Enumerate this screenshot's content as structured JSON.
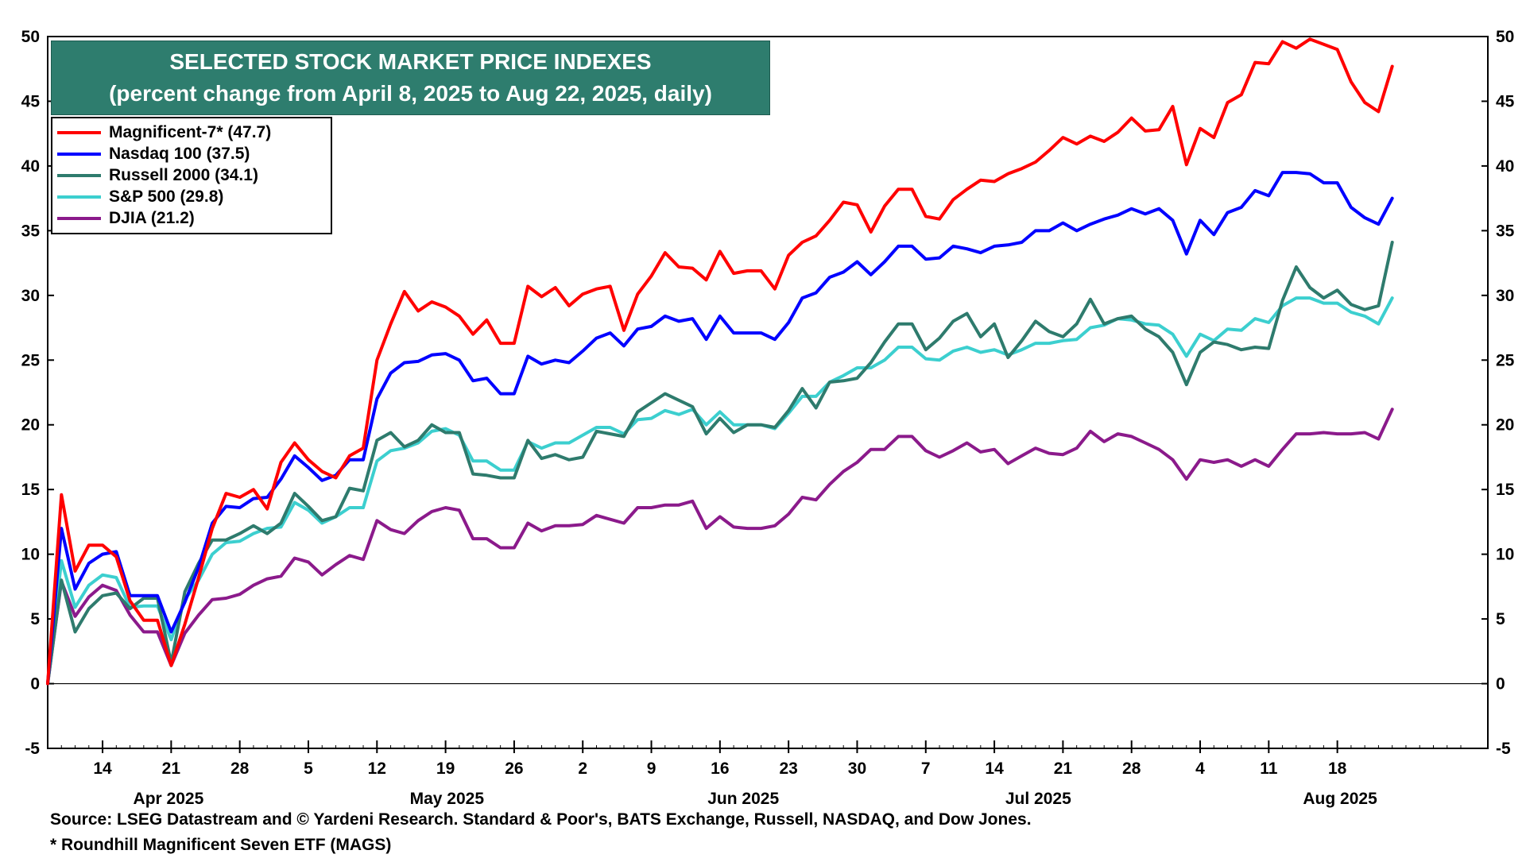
{
  "chart_data": {
    "type": "line",
    "title": "SELECTED STOCK MARKET PRICE INDEXES",
    "subtitle": "(percent change from April 8, 2025 to Aug 22, 2025, daily)",
    "ylim": [
      -5,
      50
    ],
    "yticks": [
      "-5",
      "0",
      "5",
      "10",
      "15",
      "20",
      "25",
      "30",
      "35",
      "40",
      "45",
      "50"
    ],
    "x_day_range": [
      0,
      103
    ],
    "day_ticks": [
      {
        "label": "14",
        "day": 4
      },
      {
        "label": "21",
        "day": 9
      },
      {
        "label": "28",
        "day": 14
      },
      {
        "label": "5",
        "day": 19
      },
      {
        "label": "12",
        "day": 24
      },
      {
        "label": "19",
        "day": 29
      },
      {
        "label": "26",
        "day": 34
      },
      {
        "label": "2",
        "day": 39
      },
      {
        "label": "9",
        "day": 44
      },
      {
        "label": "16",
        "day": 49
      },
      {
        "label": "23",
        "day": 54
      },
      {
        "label": "30",
        "day": 59
      },
      {
        "label": "7",
        "day": 64
      },
      {
        "label": "14",
        "day": 69
      },
      {
        "label": "21",
        "day": 74
      },
      {
        "label": "28",
        "day": 79
      },
      {
        "label": "4",
        "day": 84
      },
      {
        "label": "11",
        "day": 89
      },
      {
        "label": "18",
        "day": 94
      }
    ],
    "month_labels": [
      {
        "label": "Apr 2025",
        "day": 8.8
      },
      {
        "label": "May 2025",
        "day": 29.1
      },
      {
        "label": "Jun 2025",
        "day": 50.7
      },
      {
        "label": "Jul 2025",
        "day": 72.2
      },
      {
        "label": "Aug 2025",
        "day": 94.2
      }
    ],
    "zero_line": true,
    "legend_position": "top-left",
    "series": [
      {
        "name": "Magnificent-7*",
        "legend": "Magnificent-7* (47.7)",
        "color": "#ff0000",
        "values": [
          0,
          14.6,
          8.7,
          10.7,
          10.7,
          9.8,
          6.4,
          4.9,
          4.9,
          1.4,
          4.6,
          8.2,
          12,
          14.7,
          14.4,
          15,
          13.5,
          17.1,
          18.6,
          17.3,
          16.4,
          15.9,
          17.6,
          18.2,
          25,
          27.8,
          30.3,
          28.8,
          29.5,
          29.1,
          28.4,
          27,
          28.1,
          26.3,
          26.3,
          30.7,
          29.9,
          30.6,
          29.2,
          30.1,
          30.5,
          30.7,
          27.3,
          30.1,
          31.5,
          33.3,
          32.2,
          32.1,
          31.2,
          33.4,
          31.7,
          31.9,
          31.9,
          30.5,
          33.1,
          34.1,
          34.6,
          35.8,
          37.2,
          37,
          34.9,
          36.9,
          38.2,
          38.2,
          36.1,
          35.9,
          37.4,
          38.2,
          38.9,
          38.8,
          39.4,
          39.8,
          40.3,
          41.2,
          42.2,
          41.7,
          42.3,
          41.9,
          42.6,
          43.7,
          42.7,
          42.8,
          44.6,
          40.1,
          42.9,
          42.2,
          44.9,
          45.5,
          48,
          47.9,
          49.6,
          49.1,
          49.8,
          49.4,
          49,
          46.5,
          44.9,
          44.2,
          47.7
        ]
      },
      {
        "name": "Nasdaq 100",
        "legend": "Nasdaq 100 (37.5)",
        "color": "#0000ff",
        "values": [
          0,
          12,
          7.3,
          9.3,
          10,
          10.2,
          6.8,
          6.8,
          6.8,
          4,
          6.3,
          9,
          12.4,
          13.7,
          13.6,
          14.3,
          14.4,
          15.8,
          17.6,
          16.7,
          15.7,
          16.1,
          17.3,
          17.3,
          22,
          24,
          24.8,
          24.9,
          25.4,
          25.5,
          25,
          23.4,
          23.6,
          22.4,
          22.4,
          25.3,
          24.7,
          25,
          24.8,
          25.7,
          26.7,
          27.1,
          26.1,
          27.4,
          27.6,
          28.4,
          28,
          28.2,
          26.6,
          28.4,
          27.1,
          27.1,
          27.1,
          26.6,
          27.9,
          29.8,
          30.2,
          31.4,
          31.8,
          32.6,
          31.6,
          32.6,
          33.8,
          33.8,
          32.8,
          32.9,
          33.8,
          33.6,
          33.3,
          33.8,
          33.9,
          34.1,
          35,
          35,
          35.6,
          35,
          35.5,
          35.9,
          36.2,
          36.7,
          36.3,
          36.7,
          35.8,
          33.2,
          35.8,
          34.7,
          36.4,
          36.8,
          38.1,
          37.7,
          39.5,
          39.5,
          39.4,
          38.7,
          38.7,
          36.8,
          36,
          35.5,
          37.5
        ]
      },
      {
        "name": "Russell 2000",
        "legend": "Russell 2000 (34.1)",
        "color": "#2e7b6d",
        "values": [
          0,
          8,
          4,
          5.8,
          6.8,
          7,
          5.8,
          6.6,
          6.6,
          1.6,
          7.1,
          9.3,
          11.1,
          11.1,
          11.6,
          12.2,
          11.6,
          12.4,
          14.7,
          13.7,
          12.6,
          12.9,
          15.1,
          14.9,
          18.8,
          19.4,
          18.3,
          18.8,
          20,
          19.4,
          19.4,
          16.2,
          16.1,
          15.9,
          15.9,
          18.8,
          17.4,
          17.7,
          17.3,
          17.5,
          19.5,
          19.3,
          19.1,
          21,
          21.7,
          22.4,
          21.9,
          21.4,
          19.3,
          20.5,
          19.4,
          20,
          20,
          19.8,
          21.1,
          22.8,
          21.3,
          23.3,
          23.4,
          23.6,
          24.8,
          26.4,
          27.8,
          27.8,
          25.8,
          26.7,
          28,
          28.6,
          26.8,
          27.8,
          25.2,
          26.5,
          28,
          27.2,
          26.8,
          27.8,
          29.7,
          27.8,
          28.2,
          28.4,
          27.4,
          26.8,
          25.6,
          23.1,
          25.6,
          26.4,
          26.2,
          25.8,
          26,
          25.9,
          29.6,
          32.2,
          30.6,
          29.8,
          30.4,
          29.3,
          28.9,
          29.2,
          34.1
        ]
      },
      {
        "name": "S&P 500",
        "legend": "S&P 500 (29.8)",
        "color": "#3ccfcf",
        "values": [
          0,
          9.5,
          5.9,
          7.6,
          8.4,
          8.2,
          5.9,
          6,
          6,
          3.4,
          6.5,
          8,
          10,
          10.9,
          11,
          11.6,
          12,
          12.1,
          14,
          13.4,
          12.4,
          12.9,
          13.6,
          13.6,
          17.2,
          18,
          18.2,
          18.6,
          19.5,
          19.7,
          19.2,
          17.2,
          17.2,
          16.5,
          16.5,
          18.7,
          18.2,
          18.6,
          18.6,
          19.2,
          19.8,
          19.8,
          19.3,
          20.4,
          20.5,
          21.1,
          20.8,
          21.2,
          20,
          21,
          20,
          20,
          20,
          19.7,
          20.9,
          22.2,
          22.2,
          23.3,
          23.8,
          24.4,
          24.4,
          25,
          26,
          26,
          25.1,
          25,
          25.7,
          26,
          25.6,
          25.8,
          25.4,
          25.8,
          26.3,
          26.3,
          26.5,
          26.6,
          27.5,
          27.7,
          28.2,
          28.1,
          27.8,
          27.7,
          27,
          25.3,
          27,
          26.5,
          27.4,
          27.3,
          28.2,
          27.9,
          29.2,
          29.8,
          29.8,
          29.4,
          29.4,
          28.7,
          28.4,
          27.8,
          29.8
        ]
      },
      {
        "name": "DJIA",
        "legend": "DJIA (21.2)",
        "color": "#8b1a8b",
        "values": [
          0,
          7.9,
          5.2,
          6.7,
          7.6,
          7.2,
          5.3,
          4,
          4,
          1.4,
          3.9,
          5.3,
          6.5,
          6.6,
          6.9,
          7.6,
          8.1,
          8.3,
          9.7,
          9.4,
          8.4,
          9.2,
          9.9,
          9.6,
          12.6,
          11.9,
          11.6,
          12.6,
          13.3,
          13.6,
          13.4,
          11.2,
          11.2,
          10.5,
          10.5,
          12.4,
          11.8,
          12.2,
          12.2,
          12.3,
          13,
          12.7,
          12.4,
          13.6,
          13.6,
          13.8,
          13.8,
          14.1,
          12,
          12.9,
          12.1,
          12,
          12,
          12.2,
          13.1,
          14.4,
          14.2,
          15.4,
          16.4,
          17.1,
          18.1,
          18.1,
          19.1,
          19.1,
          18,
          17.5,
          18,
          18.6,
          17.9,
          18.1,
          17,
          17.6,
          18.2,
          17.8,
          17.7,
          18.2,
          19.5,
          18.7,
          19.3,
          19.1,
          18.6,
          18.1,
          17.3,
          15.8,
          17.3,
          17.1,
          17.3,
          16.8,
          17.3,
          16.8,
          18.1,
          19.3,
          19.3,
          19.4,
          19.3,
          19.3,
          19.4,
          18.9,
          21.2
        ]
      }
    ]
  },
  "footnotes": {
    "source": "Source: LSEG Datastream and © Yardeni Research. Standard & Poor's, BATS Exchange, Russell, NASDAQ, and Dow Jones.",
    "note": "* Roundhill Magnificent Seven ETF (MAGS)"
  }
}
